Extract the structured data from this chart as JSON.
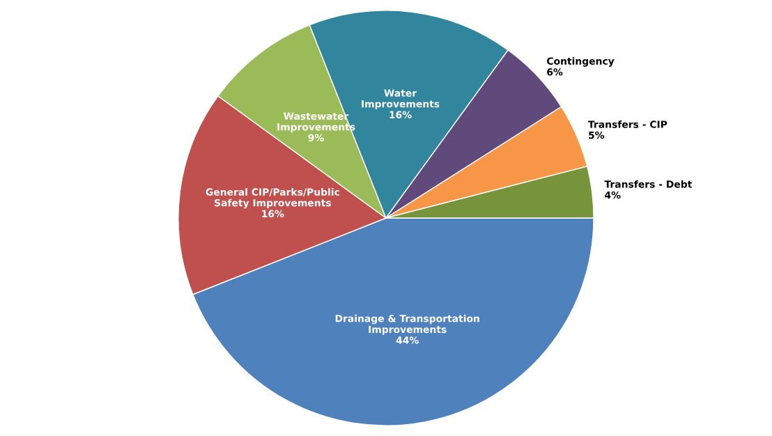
{
  "chart_data": {
    "type": "pie",
    "categories": [
      "Drainage & Transportation\nImprovements",
      "General CIP/Parks/Public\nSafety Improvements",
      "Wastewater\nImprovements",
      "Water\nImprovements",
      "Contingency",
      "Transfers - CIP",
      "Transfers - Debt"
    ],
    "values": [
      44,
      16,
      9,
      16,
      6,
      5,
      4
    ],
    "value_labels": [
      "44%",
      "16%",
      "9%",
      "16%",
      "6%",
      "5%",
      "4%"
    ],
    "colors": [
      "#4f81bd",
      "#c0504d",
      "#9bbb59",
      "#31859c",
      "#604a7b",
      "#f79646",
      "#77933c"
    ]
  }
}
